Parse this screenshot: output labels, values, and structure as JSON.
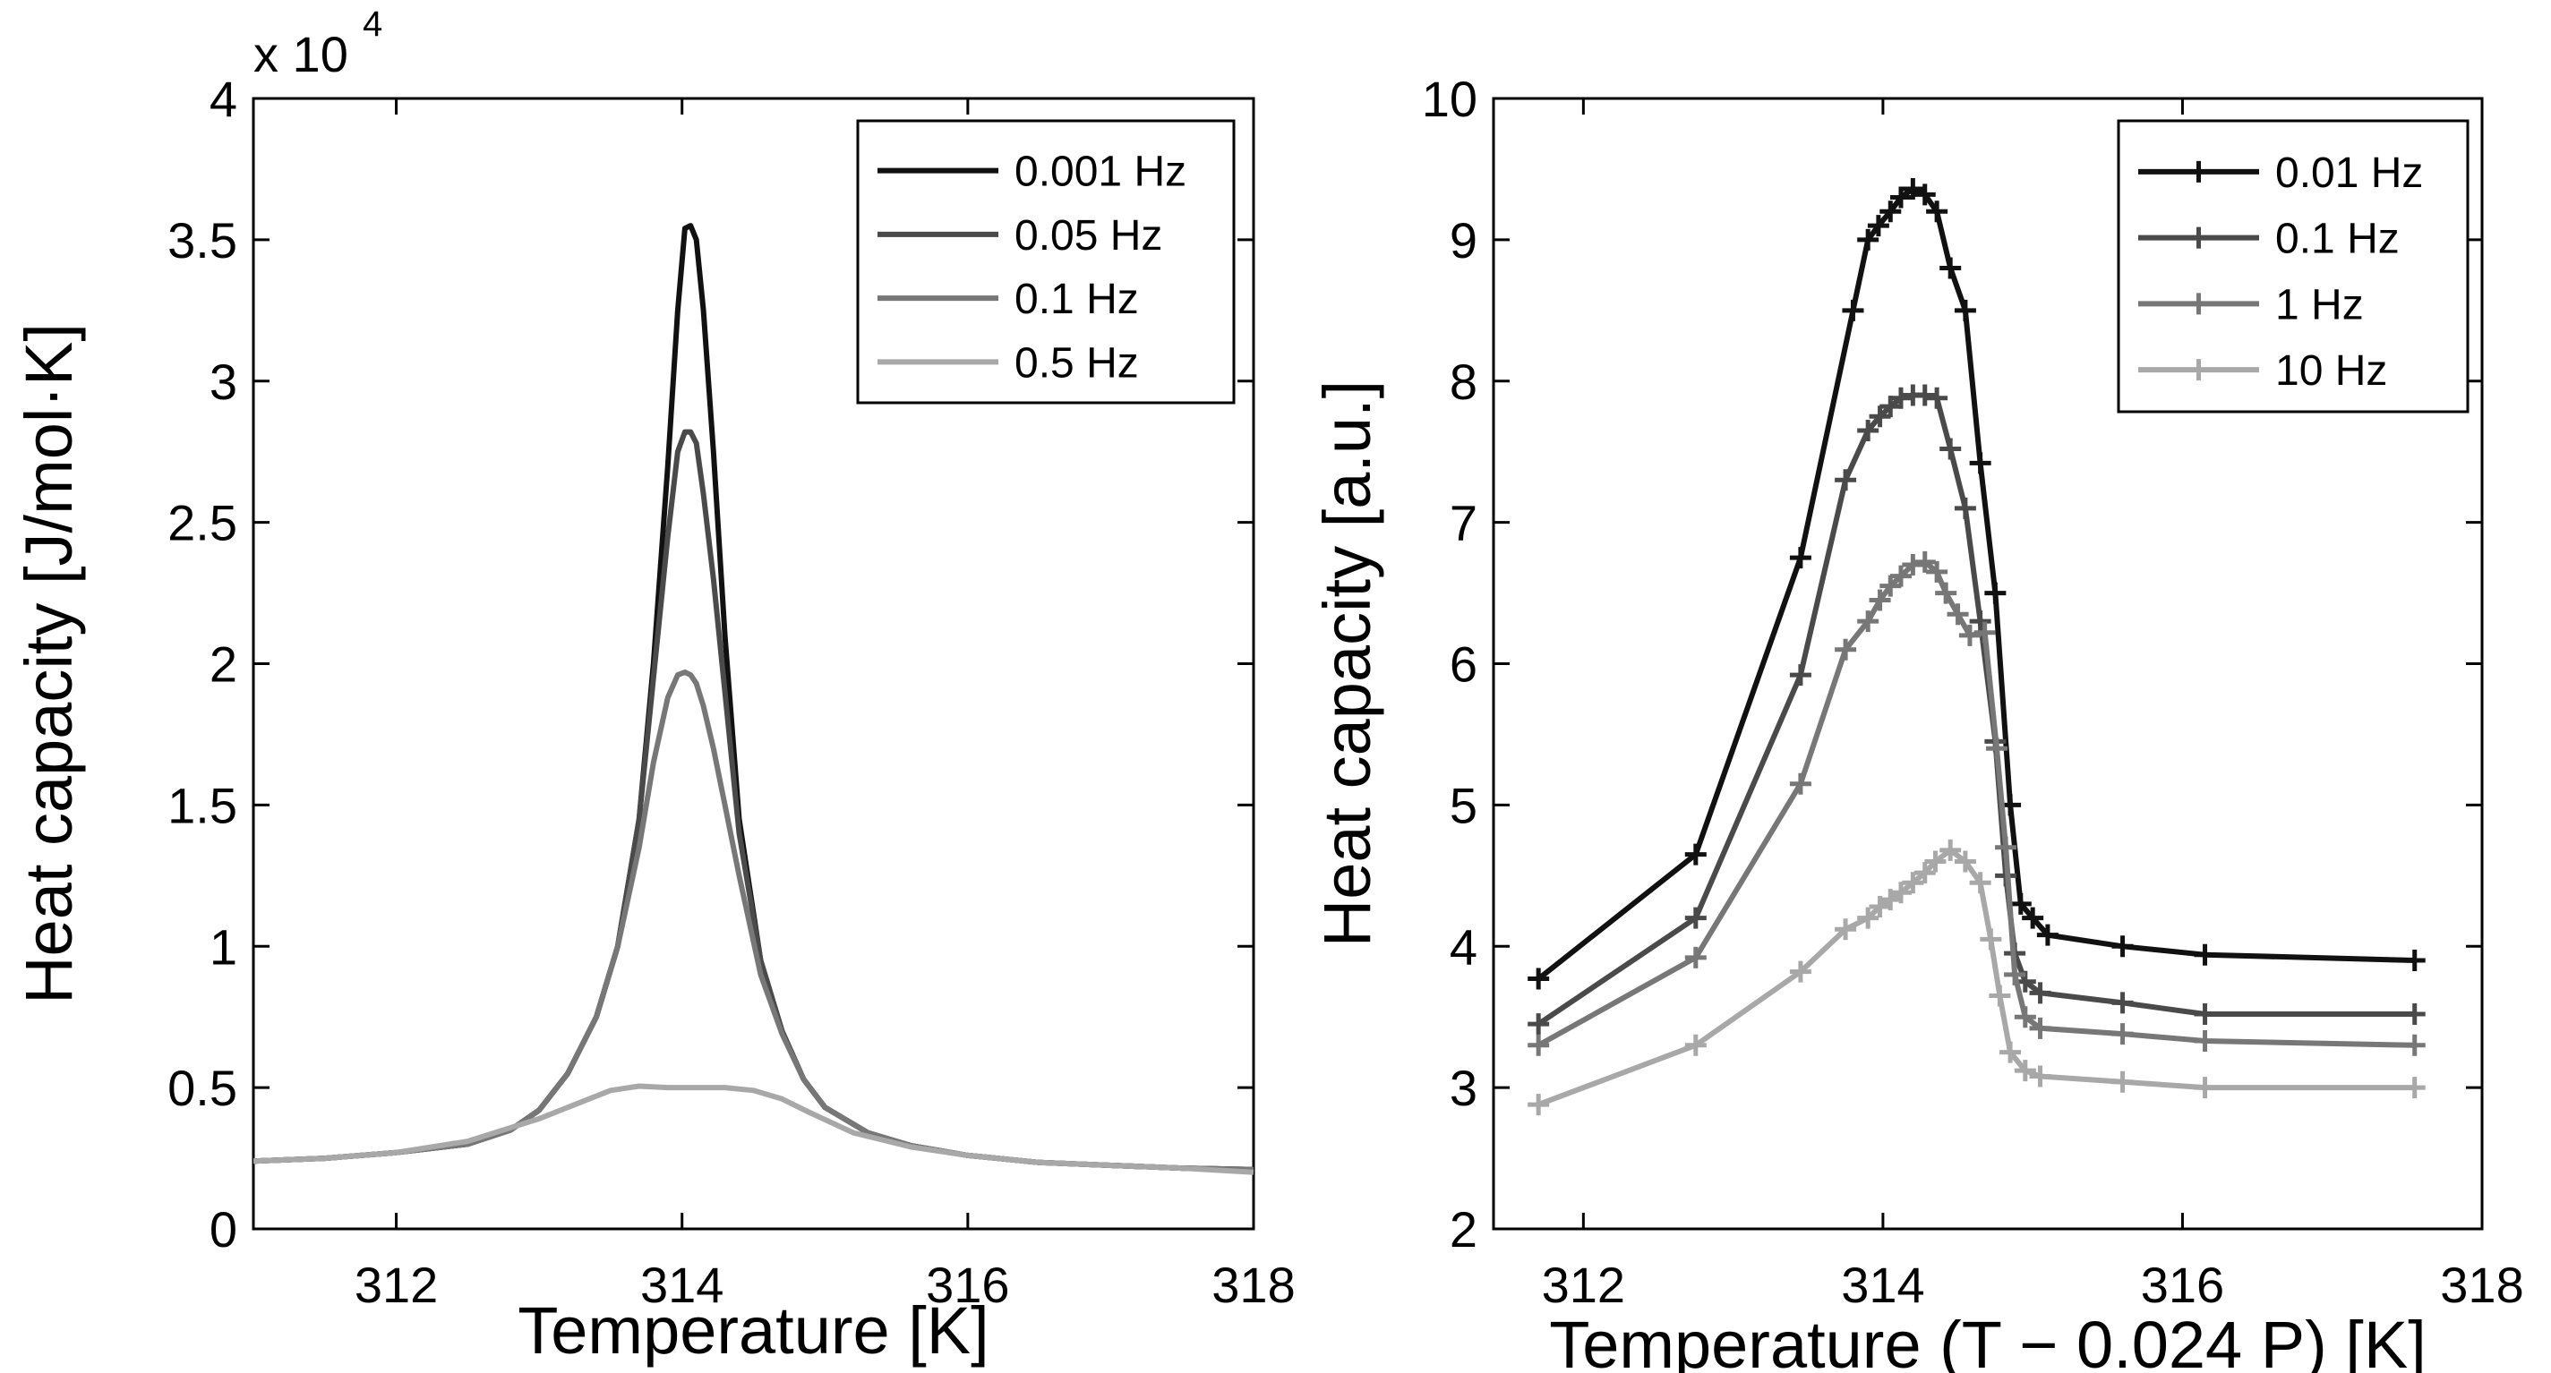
{
  "chart_data": [
    {
      "type": "line",
      "xlabel": "Temperature [K]",
      "ylabel": "Heat capacity [J/mol·K]",
      "exponent_label": "x 10",
      "exponent_power": "4",
      "xlim": [
        311,
        318
      ],
      "ylim": [
        0,
        40000
      ],
      "xticks": [
        312,
        314,
        316,
        318
      ],
      "xtick_labels": [
        "312",
        "314",
        "316",
        "318"
      ],
      "yticks": [
        0,
        5000,
        10000,
        15000,
        20000,
        25000,
        30000,
        35000,
        40000
      ],
      "ytick_labels": [
        "0",
        "0.5",
        "1",
        "1.5",
        "2",
        "2.5",
        "3",
        "3.5",
        "4"
      ],
      "legend_position": "top-right",
      "series": [
        {
          "name": "0.001 Hz",
          "color": "#111111",
          "x": [
            311.0,
            311.5,
            312.0,
            312.5,
            312.8,
            313.0,
            313.2,
            313.4,
            313.55,
            313.7,
            313.8,
            313.9,
            313.97,
            314.02,
            314.06,
            314.1,
            314.15,
            314.22,
            314.3,
            314.4,
            314.55,
            314.7,
            314.85,
            315.0,
            315.3,
            315.6,
            316.0,
            316.5,
            317.0,
            317.5,
            318.0
          ],
          "y": [
            2400,
            2500,
            2700,
            3000,
            3500,
            4200,
            5500,
            7500,
            10000,
            14500,
            20000,
            27000,
            32500,
            35400,
            35500,
            35000,
            32500,
            27500,
            21000,
            14500,
            9500,
            7000,
            5300,
            4300,
            3400,
            2950,
            2600,
            2350,
            2250,
            2150,
            2100
          ]
        },
        {
          "name": "0.05 Hz",
          "color": "#4a4a4a",
          "x": [
            311.0,
            311.5,
            312.0,
            312.5,
            312.8,
            313.0,
            313.2,
            313.4,
            313.55,
            313.7,
            313.8,
            313.9,
            313.97,
            314.02,
            314.06,
            314.1,
            314.15,
            314.22,
            314.3,
            314.4,
            314.55,
            314.7,
            314.85,
            315.0,
            315.3,
            315.6,
            316.0,
            316.5,
            317.0,
            317.5,
            318.0
          ],
          "y": [
            2400,
            2500,
            2700,
            3000,
            3500,
            4200,
            5500,
            7500,
            10000,
            14500,
            19500,
            24500,
            27500,
            28200,
            28200,
            27800,
            26000,
            23000,
            19000,
            14000,
            9500,
            7000,
            5300,
            4300,
            3400,
            2950,
            2600,
            2350,
            2250,
            2150,
            2100
          ]
        },
        {
          "name": "0.1 Hz",
          "color": "#777777",
          "x": [
            311.0,
            311.5,
            312.0,
            312.5,
            312.8,
            313.0,
            313.2,
            313.4,
            313.55,
            313.7,
            313.8,
            313.9,
            313.97,
            314.02,
            314.06,
            314.1,
            314.15,
            314.22,
            314.3,
            314.4,
            314.55,
            314.7,
            314.85,
            315.0,
            315.3,
            315.6,
            316.0,
            316.5,
            317.0,
            317.5,
            318.0
          ],
          "y": [
            2400,
            2500,
            2700,
            3000,
            3500,
            4200,
            5500,
            7500,
            10000,
            13500,
            16500,
            18800,
            19600,
            19700,
            19600,
            19300,
            18500,
            17000,
            15000,
            12500,
            9000,
            6900,
            5300,
            4300,
            3400,
            2950,
            2600,
            2350,
            2250,
            2150,
            2100
          ]
        },
        {
          "name": "0.5 Hz",
          "color": "#a8a8a8",
          "x": [
            311.0,
            311.5,
            312.0,
            312.5,
            313.0,
            313.3,
            313.5,
            313.7,
            313.9,
            314.1,
            314.3,
            314.5,
            314.7,
            314.9,
            315.2,
            315.6,
            316.0,
            316.5,
            317.0,
            317.5,
            318.0
          ],
          "y": [
            2400,
            2500,
            2700,
            3100,
            3900,
            4500,
            4900,
            5050,
            5000,
            5000,
            5000,
            4900,
            4600,
            4100,
            3400,
            2900,
            2600,
            2350,
            2250,
            2150,
            2000
          ]
        }
      ]
    },
    {
      "type": "line",
      "xlabel": "Temperature (T − 0.024 P) [K]",
      "ylabel": "Heat capacity [a.u.]",
      "xlim": [
        311.4,
        318
      ],
      "ylim": [
        2,
        10
      ],
      "xticks": [
        312,
        314,
        316,
        318
      ],
      "xtick_labels": [
        "312",
        "314",
        "316",
        "318"
      ],
      "yticks": [
        2,
        3,
        4,
        5,
        6,
        7,
        8,
        9,
        10
      ],
      "ytick_labels": [
        "2",
        "3",
        "4",
        "5",
        "6",
        "7",
        "8",
        "9",
        "10"
      ],
      "legend_position": "top-right",
      "markers": "plus",
      "series": [
        {
          "name": "0.01 Hz",
          "color": "#111111",
          "x": [
            311.7,
            312.75,
            313.45,
            313.8,
            313.9,
            313.97,
            314.05,
            314.12,
            314.2,
            314.28,
            314.36,
            314.45,
            314.55,
            314.65,
            314.75,
            314.85,
            314.92,
            315.0,
            315.1,
            315.6,
            316.15,
            317.55
          ],
          "y": [
            3.77,
            4.65,
            6.75,
            8.5,
            9.0,
            9.1,
            9.2,
            9.3,
            9.36,
            9.32,
            9.2,
            8.8,
            8.5,
            7.42,
            6.5,
            5.0,
            4.3,
            4.2,
            4.08,
            4.0,
            3.94,
            3.9
          ]
        },
        {
          "name": "0.1 Hz",
          "color": "#4a4a4a",
          "x": [
            311.7,
            312.75,
            313.45,
            313.75,
            313.9,
            313.98,
            314.05,
            314.12,
            314.2,
            314.28,
            314.36,
            314.45,
            314.55,
            314.65,
            314.75,
            314.82,
            314.88,
            314.95,
            315.05,
            315.6,
            316.15,
            317.55
          ],
          "y": [
            3.45,
            4.2,
            5.92,
            7.3,
            7.65,
            7.75,
            7.82,
            7.88,
            7.9,
            7.9,
            7.88,
            7.52,
            7.1,
            6.3,
            5.45,
            4.5,
            3.95,
            3.75,
            3.67,
            3.6,
            3.52,
            3.52
          ]
        },
        {
          "name": "1 Hz",
          "color": "#777777",
          "x": [
            311.7,
            312.75,
            313.45,
            313.75,
            313.9,
            313.98,
            314.05,
            314.12,
            314.2,
            314.28,
            314.36,
            314.42,
            314.5,
            314.58,
            314.68,
            314.76,
            314.82,
            314.88,
            314.95,
            315.05,
            315.6,
            316.15,
            317.55
          ],
          "y": [
            3.3,
            3.92,
            5.15,
            6.1,
            6.3,
            6.45,
            6.55,
            6.62,
            6.7,
            6.72,
            6.65,
            6.5,
            6.35,
            6.2,
            6.22,
            5.4,
            4.7,
            3.8,
            3.5,
            3.42,
            3.38,
            3.33,
            3.3
          ]
        },
        {
          "name": "10 Hz",
          "color": "#a8a8a8",
          "x": [
            311.7,
            312.75,
            313.45,
            313.75,
            313.9,
            313.98,
            314.05,
            314.12,
            314.2,
            314.28,
            314.35,
            314.45,
            314.55,
            314.65,
            314.72,
            314.78,
            314.85,
            314.95,
            315.05,
            315.6,
            316.15,
            317.55
          ],
          "y": [
            2.88,
            3.3,
            3.82,
            4.12,
            4.2,
            4.28,
            4.33,
            4.38,
            4.45,
            4.52,
            4.6,
            4.68,
            4.6,
            4.45,
            4.05,
            3.65,
            3.25,
            3.12,
            3.08,
            3.04,
            3.0,
            3.0
          ]
        }
      ]
    }
  ]
}
